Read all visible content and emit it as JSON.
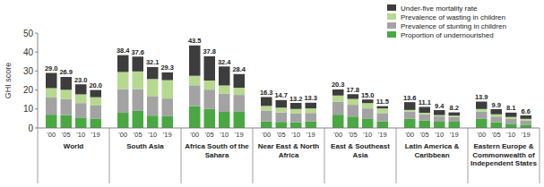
{
  "chart_data": {
    "type": "bar",
    "stacked": true,
    "grid": false,
    "legend": "top-right",
    "y_label": "GHI score",
    "ylim": [
      0,
      50
    ],
    "yticks": [
      0,
      10,
      20,
      30,
      40,
      50
    ],
    "groups": [
      "World",
      "South Asia",
      "Africa South of the Sahara",
      "Near East & North Africa",
      "East & Southeast Asia",
      "Latin America & Caribbean",
      "Eastern Europe & Commonwealth of Independent States"
    ],
    "categories": [
      "'00",
      "'05",
      "'10",
      "'19",
      "'00",
      "'05",
      "'10",
      "'19",
      "'00",
      "'05",
      "'10",
      "'19",
      "'00",
      "'05",
      "'10",
      "'19",
      "'00",
      "'05",
      "'10",
      "'19",
      "'00",
      "'05",
      "'10",
      "'19",
      "'00",
      "'05",
      "'10",
      "'19"
    ],
    "totals": [
      29.0,
      26.9,
      23.0,
      20.0,
      38.4,
      37.6,
      32.1,
      29.3,
      43.5,
      37.8,
      32.4,
      28.4,
      16.3,
      14.7,
      13.2,
      13.3,
      20.3,
      17.8,
      15.0,
      11.5,
      13.6,
      11.1,
      9.4,
      8.2,
      13.9,
      9.9,
      8.1,
      6.6
    ],
    "total_labels": [
      "29.0",
      "26.9",
      "23.0",
      "20.0",
      "38.4",
      "37.6",
      "32.1",
      "29.3",
      "43.5",
      "37.8",
      "32.4",
      "28.4",
      "16.3",
      "14.7",
      "13.2",
      "13.3",
      "20.3",
      "17.8",
      "15.0",
      "11.5",
      "13.6",
      "11.1",
      "9.4",
      "8.2",
      "13.9",
      "9.9",
      "8.1",
      "6.6"
    ],
    "series": [
      {
        "name": "Proportion of undernourished",
        "color": "#4aa843",
        "values": [
          7.0,
          6.8,
          5.5,
          5.0,
          8.0,
          9.0,
          6.5,
          6.2,
          11.5,
          10.0,
          8.5,
          8.8,
          3.5,
          3.2,
          3.0,
          3.4,
          7.0,
          6.0,
          5.0,
          3.5,
          4.8,
          4.0,
          3.3,
          3.3,
          4.8,
          3.0,
          2.2,
          1.7
        ]
      },
      {
        "name": "Prevalence of stunting in children",
        "color": "#a3a3a3",
        "values": [
          9.0,
          8.4,
          7.6,
          6.8,
          12.5,
          11.5,
          10.3,
          9.3,
          11.0,
          10.2,
          9.5,
          8.6,
          5.5,
          5.0,
          4.6,
          4.5,
          6.8,
          6.2,
          5.3,
          4.3,
          3.8,
          3.2,
          2.8,
          2.5,
          3.8,
          3.0,
          2.6,
          2.2
        ]
      },
      {
        "name": "Prevalence of wasting in children",
        "color": "#b6d98f",
        "values": [
          5.0,
          4.9,
          4.6,
          4.4,
          9.0,
          9.3,
          9.0,
          9.7,
          5.0,
          4.8,
          4.4,
          3.8,
          2.6,
          2.5,
          2.4,
          2.4,
          3.3,
          3.1,
          2.8,
          2.5,
          0.9,
          0.8,
          0.7,
          0.7,
          1.4,
          1.2,
          1.0,
          0.9
        ]
      },
      {
        "name": "Under-five mortality rate",
        "color": "#3d3d3d",
        "values": [
          8.0,
          6.8,
          5.3,
          3.8,
          8.9,
          7.8,
          6.3,
          4.1,
          16.0,
          12.8,
          10.0,
          7.2,
          4.7,
          4.0,
          3.2,
          3.0,
          3.2,
          2.5,
          1.9,
          1.2,
          4.1,
          3.1,
          2.6,
          1.7,
          3.9,
          2.7,
          2.3,
          1.8
        ]
      }
    ]
  }
}
